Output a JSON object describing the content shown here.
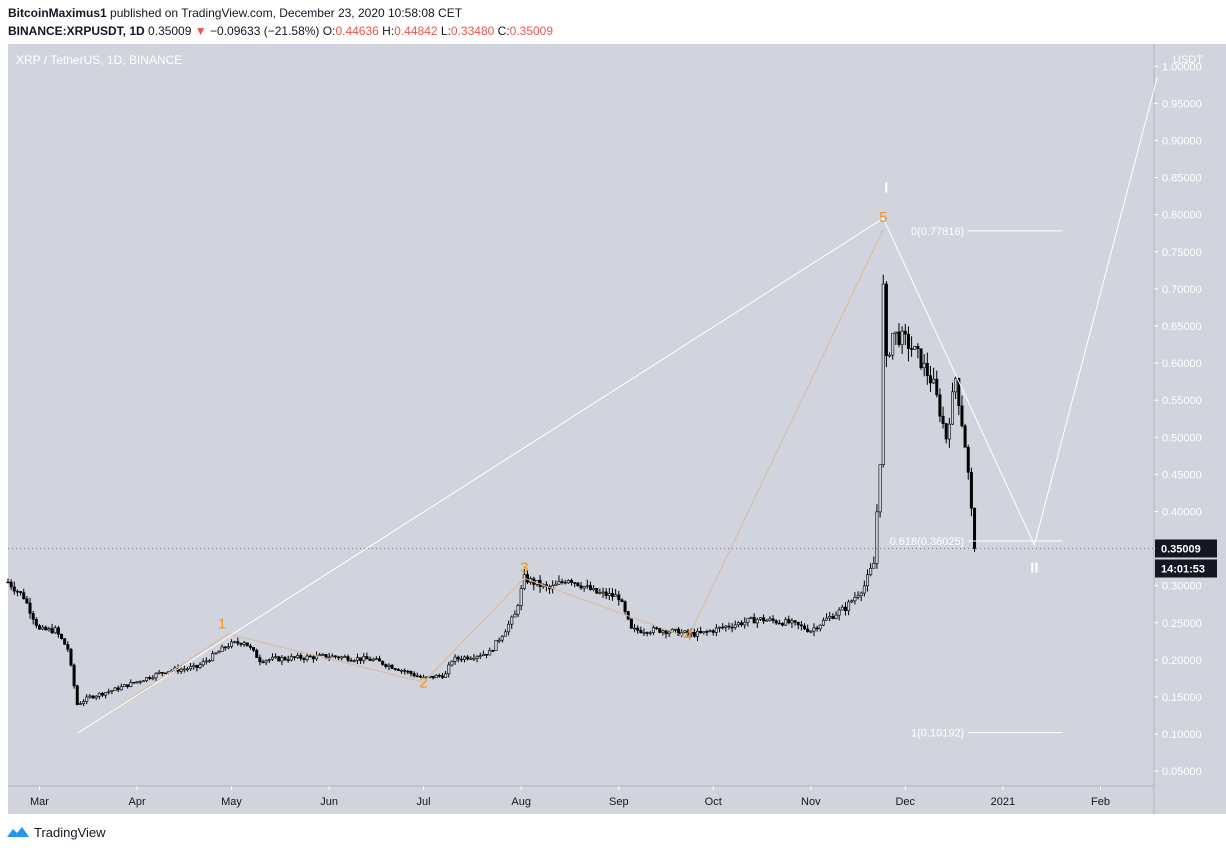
{
  "header": {
    "user": "BitcoinMaximus1",
    "published": "published on TradingView.com, December 23, 2020 10:58:08 CET",
    "symbol": "BINANCE:XRPUSDT, 1D",
    "last": "0.35009",
    "arrow": "▼",
    "change": "−0.09633 (−21.58%)",
    "o_label": "O:",
    "o": "0.44636",
    "h_label": "H:",
    "h": "0.44842",
    "l_label": "L:",
    "l": "0.33480",
    "c_label": "C:",
    "c": "0.35009"
  },
  "footer": {
    "brand": "TradingView"
  },
  "colors": {
    "plot_bg": "#d1d4dc",
    "candle": "#000000",
    "wave_line": "#ffffff",
    "orange": "#f7931a",
    "tan": "#d9b99b",
    "price_badge": "#131722"
  },
  "chart_data": {
    "type": "candlestick",
    "title": "XRP / TetherUS, 1D, BINANCE",
    "y_unit": "USDT",
    "ylim": [
      0.03,
      1.03
    ],
    "xlim": [
      "2020-02-20",
      "2021-02-18"
    ],
    "y_ticks": [
      "0.05000",
      "0.10000",
      "0.15000",
      "0.20000",
      "0.25000",
      "0.30000",
      "0.35000",
      "0.40000",
      "0.45000",
      "0.50000",
      "0.55000",
      "0.60000",
      "0.65000",
      "0.70000",
      "0.75000",
      "0.80000",
      "0.85000",
      "0.90000",
      "0.95000",
      "1.00000"
    ],
    "x_ticks": [
      {
        "label": "Mar",
        "date": "2020-03-01"
      },
      {
        "label": "Apr",
        "date": "2020-04-01"
      },
      {
        "label": "May",
        "date": "2020-05-01"
      },
      {
        "label": "Jun",
        "date": "2020-06-01"
      },
      {
        "label": "Jul",
        "date": "2020-07-01"
      },
      {
        "label": "Aug",
        "date": "2020-08-01"
      },
      {
        "label": "Sep",
        "date": "2020-09-01"
      },
      {
        "label": "Oct",
        "date": "2020-10-01"
      },
      {
        "label": "Nov",
        "date": "2020-11-01"
      },
      {
        "label": "Dec",
        "date": "2020-12-01"
      },
      {
        "label": "2021",
        "date": "2021-01-01"
      },
      {
        "label": "Feb",
        "date": "2021-02-01"
      }
    ],
    "price_key_points": [
      {
        "date": "2020-02-20",
        "price": 0.305
      },
      {
        "date": "2020-02-25",
        "price": 0.285
      },
      {
        "date": "2020-03-01",
        "price": 0.24
      },
      {
        "date": "2020-03-06",
        "price": 0.24
      },
      {
        "date": "2020-03-10",
        "price": 0.215
      },
      {
        "date": "2020-03-13",
        "price": 0.14
      },
      {
        "date": "2020-03-17",
        "price": 0.15
      },
      {
        "date": "2020-03-25",
        "price": 0.16
      },
      {
        "date": "2020-04-10",
        "price": 0.185
      },
      {
        "date": "2020-04-20",
        "price": 0.19
      },
      {
        "date": "2020-04-30",
        "price": 0.22
      },
      {
        "date": "2020-05-05",
        "price": 0.225
      },
      {
        "date": "2020-05-10",
        "price": 0.2
      },
      {
        "date": "2020-06-01",
        "price": 0.205
      },
      {
        "date": "2020-06-15",
        "price": 0.2
      },
      {
        "date": "2020-06-25",
        "price": 0.185
      },
      {
        "date": "2020-07-01",
        "price": 0.175
      },
      {
        "date": "2020-07-08",
        "price": 0.18
      },
      {
        "date": "2020-07-10",
        "price": 0.2
      },
      {
        "date": "2020-07-22",
        "price": 0.21
      },
      {
        "date": "2020-07-30",
        "price": 0.26
      },
      {
        "date": "2020-08-02",
        "price": 0.31
      },
      {
        "date": "2020-08-10",
        "price": 0.295
      },
      {
        "date": "2020-08-16",
        "price": 0.31
      },
      {
        "date": "2020-08-25",
        "price": 0.29
      },
      {
        "date": "2020-09-01",
        "price": 0.285
      },
      {
        "date": "2020-09-05",
        "price": 0.24
      },
      {
        "date": "2020-09-15",
        "price": 0.24
      },
      {
        "date": "2020-09-23",
        "price": 0.235
      },
      {
        "date": "2020-09-27",
        "price": 0.235
      },
      {
        "date": "2020-10-05",
        "price": 0.245
      },
      {
        "date": "2020-10-15",
        "price": 0.255
      },
      {
        "date": "2020-10-25",
        "price": 0.25
      },
      {
        "date": "2020-11-01",
        "price": 0.24
      },
      {
        "date": "2020-11-06",
        "price": 0.255
      },
      {
        "date": "2020-11-12",
        "price": 0.27
      },
      {
        "date": "2020-11-18",
        "price": 0.3
      },
      {
        "date": "2020-11-21",
        "price": 0.33
      },
      {
        "date": "2020-11-23",
        "price": 0.47
      },
      {
        "date": "2020-11-24",
        "price": 0.7
      },
      {
        "date": "2020-11-25",
        "price": 0.6
      },
      {
        "date": "2020-11-27",
        "price": 0.64
      },
      {
        "date": "2020-12-01",
        "price": 0.63
      },
      {
        "date": "2020-12-05",
        "price": 0.61
      },
      {
        "date": "2020-12-10",
        "price": 0.57
      },
      {
        "date": "2020-12-14",
        "price": 0.5
      },
      {
        "date": "2020-12-17",
        "price": 0.58
      },
      {
        "date": "2020-12-20",
        "price": 0.49
      },
      {
        "date": "2020-12-21",
        "price": 0.45
      },
      {
        "date": "2020-12-23",
        "price": 0.35009
      }
    ],
    "wave_labels": [
      {
        "text": "1",
        "date": "2020-04-28",
        "price": 0.242,
        "color": "orange"
      },
      {
        "text": "2",
        "date": "2020-07-01",
        "price": 0.163,
        "color": "orange"
      },
      {
        "text": "3",
        "date": "2020-08-02",
        "price": 0.318,
        "color": "orange"
      },
      {
        "text": "4",
        "date": "2020-09-23",
        "price": 0.226,
        "color": "orange"
      },
      {
        "text": "5",
        "date": "2020-11-24",
        "price": 0.79,
        "color": "orange"
      },
      {
        "text": "I",
        "date": "2020-11-25",
        "price": 0.83,
        "color": "white"
      },
      {
        "text": "II",
        "date": "2021-01-11",
        "price": 0.318,
        "color": "white"
      }
    ],
    "subwave_path": [
      {
        "date": "2020-03-13",
        "price": 0.101
      },
      {
        "date": "2020-04-30",
        "price": 0.235
      },
      {
        "date": "2020-07-01",
        "price": 0.17
      },
      {
        "date": "2020-08-02",
        "price": 0.31
      },
      {
        "date": "2020-09-23",
        "price": 0.23
      },
      {
        "date": "2020-11-24",
        "price": 0.78
      }
    ],
    "white_wave_path": [
      {
        "date": "2020-03-13",
        "price": 0.101
      },
      {
        "date": "2020-11-24",
        "price": 0.795
      },
      {
        "date": "2021-01-11",
        "price": 0.355
      },
      {
        "date": "2021-02-19",
        "price": 0.985
      }
    ],
    "fib_levels": [
      {
        "label": "0(0.77816)",
        "price": 0.77816
      },
      {
        "label": "0.618(0.36025)",
        "price": 0.36025
      },
      {
        "label": "1(0.10192)",
        "price": 0.10192
      }
    ],
    "last_price": {
      "value": "0.35009",
      "countdown": "14:01:53"
    }
  }
}
